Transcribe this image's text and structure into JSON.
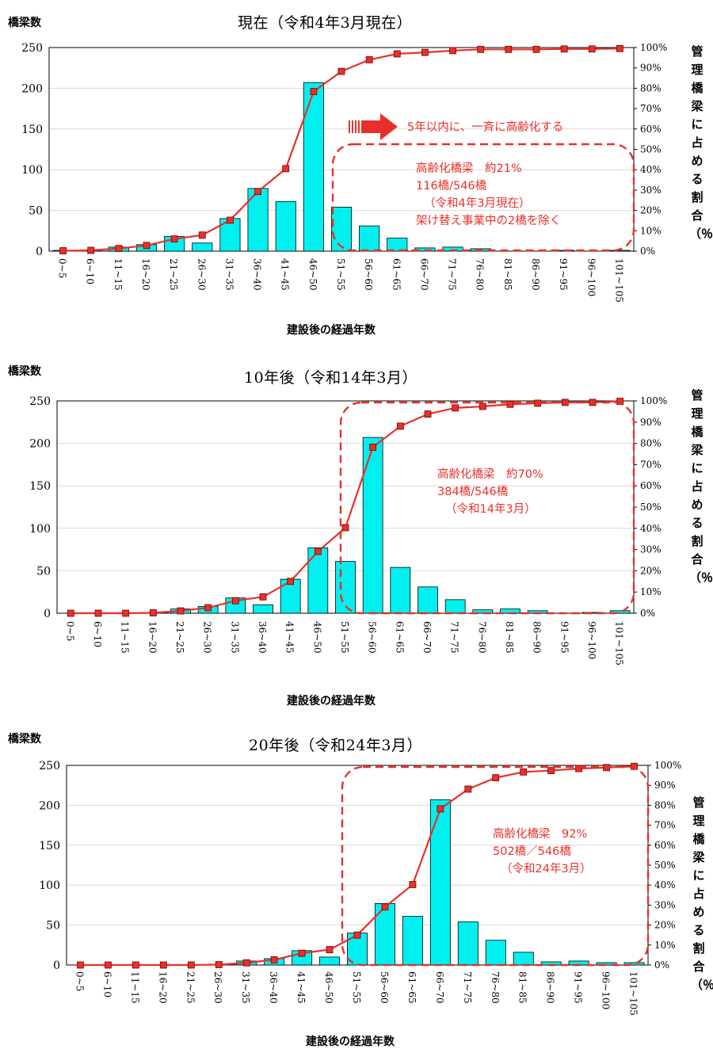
{
  "chart_data": [
    {
      "type": "bar",
      "title": "現在（令和4年3月現在）",
      "ylabel": "橋梁数",
      "y2label": "管理橋梁に占める割合（％）",
      "xlabel": "建設後の経過年数",
      "ylim": [
        0,
        250
      ],
      "yticks": [
        "0",
        "50",
        "100",
        "150",
        "200",
        "250"
      ],
      "y2lim": [
        0,
        100
      ],
      "y2ticks": [
        "0%",
        "10%",
        "20%",
        "30%",
        "40%",
        "50%",
        "60%",
        "70%",
        "80%",
        "90%",
        "100%"
      ],
      "categories": [
        "0~5",
        "6~10",
        "11~15",
        "16~20",
        "21~25",
        "26~30",
        "31~35",
        "36~40",
        "41~45",
        "46~50",
        "51~55",
        "56~60",
        "61~65",
        "66~70",
        "71~75",
        "76~80",
        "81~85",
        "86~90",
        "91~95",
        "96~100",
        "101~105"
      ],
      "series": [
        {
          "type": "bar",
          "values": [
            1,
            1,
            5,
            8,
            18,
            10,
            40,
            77,
            61,
            207,
            54,
            31,
            16,
            4,
            5,
            3,
            0,
            0,
            1,
            0,
            1
          ]
        },
        {
          "type": "line",
          "axis": "right",
          "values": [
            0.2,
            0.4,
            1.3,
            2.8,
            6.0,
            7.9,
            15.2,
            29.3,
            40.5,
            78.4,
            88.3,
            94.0,
            96.9,
            97.6,
            98.5,
            99.1,
            99.1,
            99.1,
            99.3,
            99.3,
            99.5
          ]
        }
      ],
      "annotations": {
        "arrow_text": "5年以内に、一斉に高齢化する",
        "box_lines": [
          "高齢化橋梁　約21%",
          "116橋/546橋",
          "（令和4年3月現在）",
          "架け替え事業中の2橋を除く"
        ]
      }
    },
    {
      "type": "bar",
      "title": "10年後（令和14年3月）",
      "ylabel": "橋梁数",
      "y2label": "管理橋梁に占める割合（％）",
      "xlabel": "建設後の経過年数",
      "ylim": [
        0,
        250
      ],
      "yticks": [
        "0",
        "50",
        "100",
        "150",
        "200",
        "250"
      ],
      "y2lim": [
        0,
        100
      ],
      "y2ticks": [
        "0%",
        "10%",
        "20%",
        "30%",
        "40%",
        "50%",
        "60%",
        "70%",
        "80%",
        "90%",
        "100%"
      ],
      "categories": [
        "0~5",
        "6~10",
        "11~15",
        "16~20",
        "21~25",
        "26~30",
        "31~35",
        "36~40",
        "41~45",
        "46~50",
        "51~55",
        "56~60",
        "61~65",
        "66~70",
        "71~75",
        "76~80",
        "81~85",
        "86~90",
        "91~95",
        "96~100",
        "101~105"
      ],
      "series": [
        {
          "type": "bar",
          "values": [
            0,
            0,
            0,
            1,
            5,
            8,
            18,
            10,
            40,
            77,
            61,
            207,
            54,
            31,
            16,
            4,
            5,
            3,
            0,
            1,
            3
          ]
        },
        {
          "type": "line",
          "axis": "right",
          "values": [
            0,
            0,
            0,
            0.2,
            1.1,
            2.6,
            5.9,
            7.7,
            15.0,
            29.1,
            40.3,
            78.2,
            88.1,
            93.8,
            96.7,
            97.4,
            98.4,
            98.9,
            99.3,
            99.3,
            99.8
          ]
        }
      ],
      "annotations": {
        "box_lines": [
          "高齢化橋梁　約70%",
          "384橋/546橋",
          "（令和14年3月）"
        ]
      }
    },
    {
      "type": "bar",
      "title": "20年後（令和24年3月）",
      "ylabel": "橋梁数",
      "y2label": "管理橋梁に占める割合（％）",
      "xlabel": "建設後の経過年数",
      "ylim": [
        0,
        250
      ],
      "yticks": [
        "0",
        "50",
        "100",
        "150",
        "200",
        "250"
      ],
      "y2lim": [
        0,
        100
      ],
      "y2ticks": [
        "0%",
        "10%",
        "20%",
        "30%",
        "40%",
        "50%",
        "60%",
        "70%",
        "80%",
        "90%",
        "100%"
      ],
      "categories": [
        "0~5",
        "6~10",
        "11~15",
        "16~20",
        "21~25",
        "26~30",
        "31~35",
        "36~40",
        "41~45",
        "46~50",
        "51~55",
        "56~60",
        "61~65",
        "66~70",
        "71~75",
        "76~80",
        "81~85",
        "86~90",
        "91~95",
        "96~100",
        "101~105"
      ],
      "series": [
        {
          "type": "bar",
          "values": [
            0,
            0,
            0,
            0,
            0,
            1,
            5,
            8,
            18,
            10,
            40,
            77,
            61,
            207,
            54,
            31,
            16,
            4,
            5,
            3,
            3
          ]
        },
        {
          "type": "line",
          "axis": "right",
          "values": [
            0,
            0,
            0,
            0,
            0,
            0.2,
            1.1,
            2.6,
            5.9,
            7.7,
            15.0,
            29.1,
            40.3,
            78.2,
            88.1,
            93.8,
            96.7,
            97.4,
            98.4,
            98.9,
            99.5
          ]
        }
      ],
      "annotations": {
        "box_lines": [
          "高齢化橋梁　92%",
          "502橋／546橋",
          "（令和24年3月）"
        ]
      }
    }
  ]
}
